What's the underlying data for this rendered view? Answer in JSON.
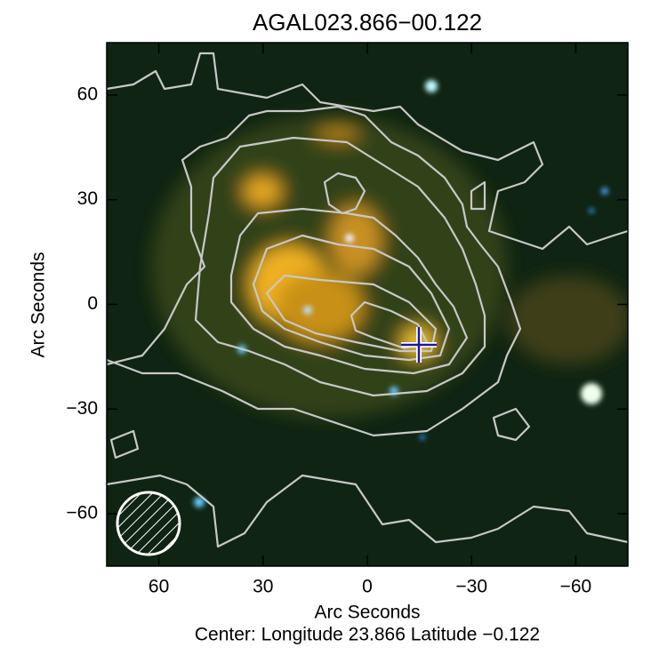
{
  "chart_data": {
    "type": "image",
    "title": "AGAL023.866−00.122",
    "x_label": "Arc Seconds",
    "y_label": "Arc Seconds",
    "subtitle": "Center:  Longitude 23.866 Latitude −0.122",
    "xlim": [
      75,
      -75
    ],
    "ylim": [
      -75,
      75
    ],
    "xticks": [
      60,
      30,
      0,
      {
        "value": -30,
        "label": "−30"
      },
      {
        "value": -60,
        "label": "−60"
      }
    ],
    "yticks": [
      60,
      30,
      0,
      {
        "value": -30,
        "label": "−30"
      },
      {
        "value": -60,
        "label": "−60"
      }
    ]
  }
}
